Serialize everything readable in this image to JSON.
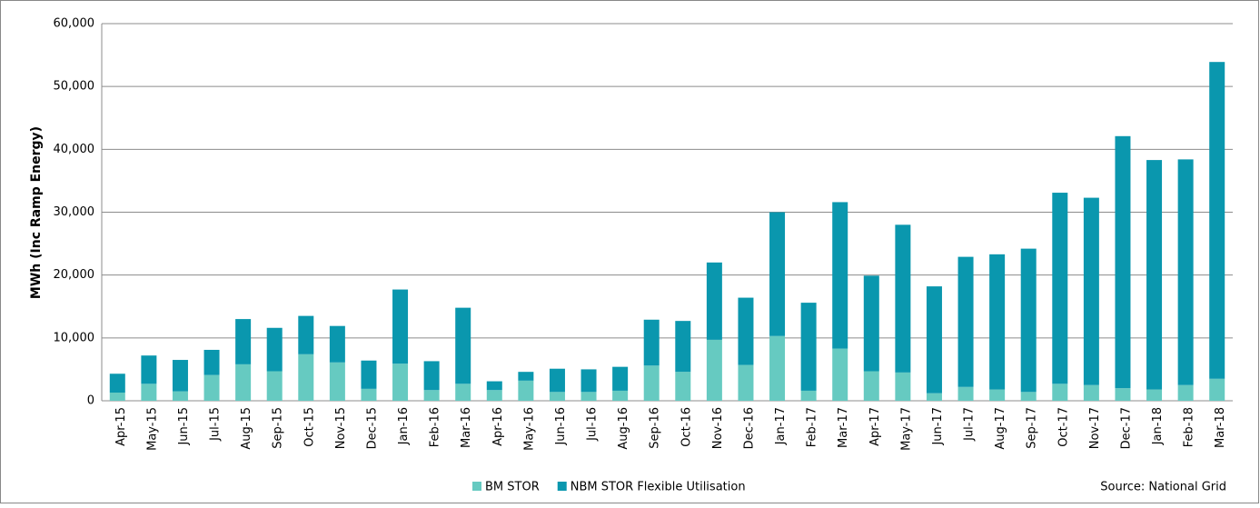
{
  "chart_data": {
    "type": "stacked_bar",
    "y_label": "MWh (Inc Ramp Energy)",
    "annotation": "Source: National Grid",
    "categories": [
      "Apr-15",
      "May-15",
      "Jun-15",
      "Jul-15",
      "Aug-15",
      "Sep-15",
      "Oct-15",
      "Nov-15",
      "Dec-15",
      "Jan-16",
      "Feb-16",
      "Mar-16",
      "Apr-16",
      "May-16",
      "Jun-16",
      "Jul-16",
      "Aug-16",
      "Sep-16",
      "Oct-16",
      "Nov-16",
      "Dec-16",
      "Jan-17",
      "Feb-17",
      "Mar-17",
      "Apr-17",
      "May-17",
      "Jun-17",
      "Jul-17",
      "Aug-17",
      "Sep-17",
      "Oct-17",
      "Nov-17",
      "Dec-17",
      "Jan-18",
      "Feb-18",
      "Mar-18"
    ],
    "series": [
      {
        "name": "BM STOR",
        "color": "#66cac1",
        "values": [
          1300,
          2700,
          1500,
          4100,
          5800,
          4700,
          7400,
          6100,
          1900,
          5900,
          1700,
          2700,
          1700,
          3200,
          1400,
          1400,
          1600,
          5600,
          4600,
          9700,
          5700,
          10300,
          1600,
          8300,
          4700,
          4500,
          1200,
          2200,
          1800,
          1400,
          2700,
          2500,
          2000,
          1800,
          2500,
          3500
        ]
      },
      {
        "name": "NBM STOR Flexible Utilisation",
        "color": "#0a97ae",
        "values": [
          3000,
          4500,
          5000,
          4000,
          7200,
          6900,
          6100,
          5800,
          4500,
          11800,
          4600,
          12100,
          1400,
          1400,
          3700,
          3600,
          3800,
          7300,
          8100,
          12300,
          10700,
          19700,
          14000,
          23300,
          15200,
          23500,
          17000,
          20700,
          21500,
          22800,
          30400,
          29800,
          40100,
          36500,
          35900,
          50400
        ]
      }
    ],
    "ylim": [
      0,
      60000
    ],
    "yticks": [
      0,
      {
        "value": 10000,
        "label": "10,000"
      },
      {
        "value": 20000,
        "label": "20,000"
      },
      {
        "value": 30000,
        "label": "30,000"
      },
      {
        "value": 40000,
        "label": "40,000"
      },
      {
        "value": 50000,
        "label": "50,000"
      },
      {
        "value": 60000,
        "label": "60,000"
      }
    ],
    "grid": true
  }
}
